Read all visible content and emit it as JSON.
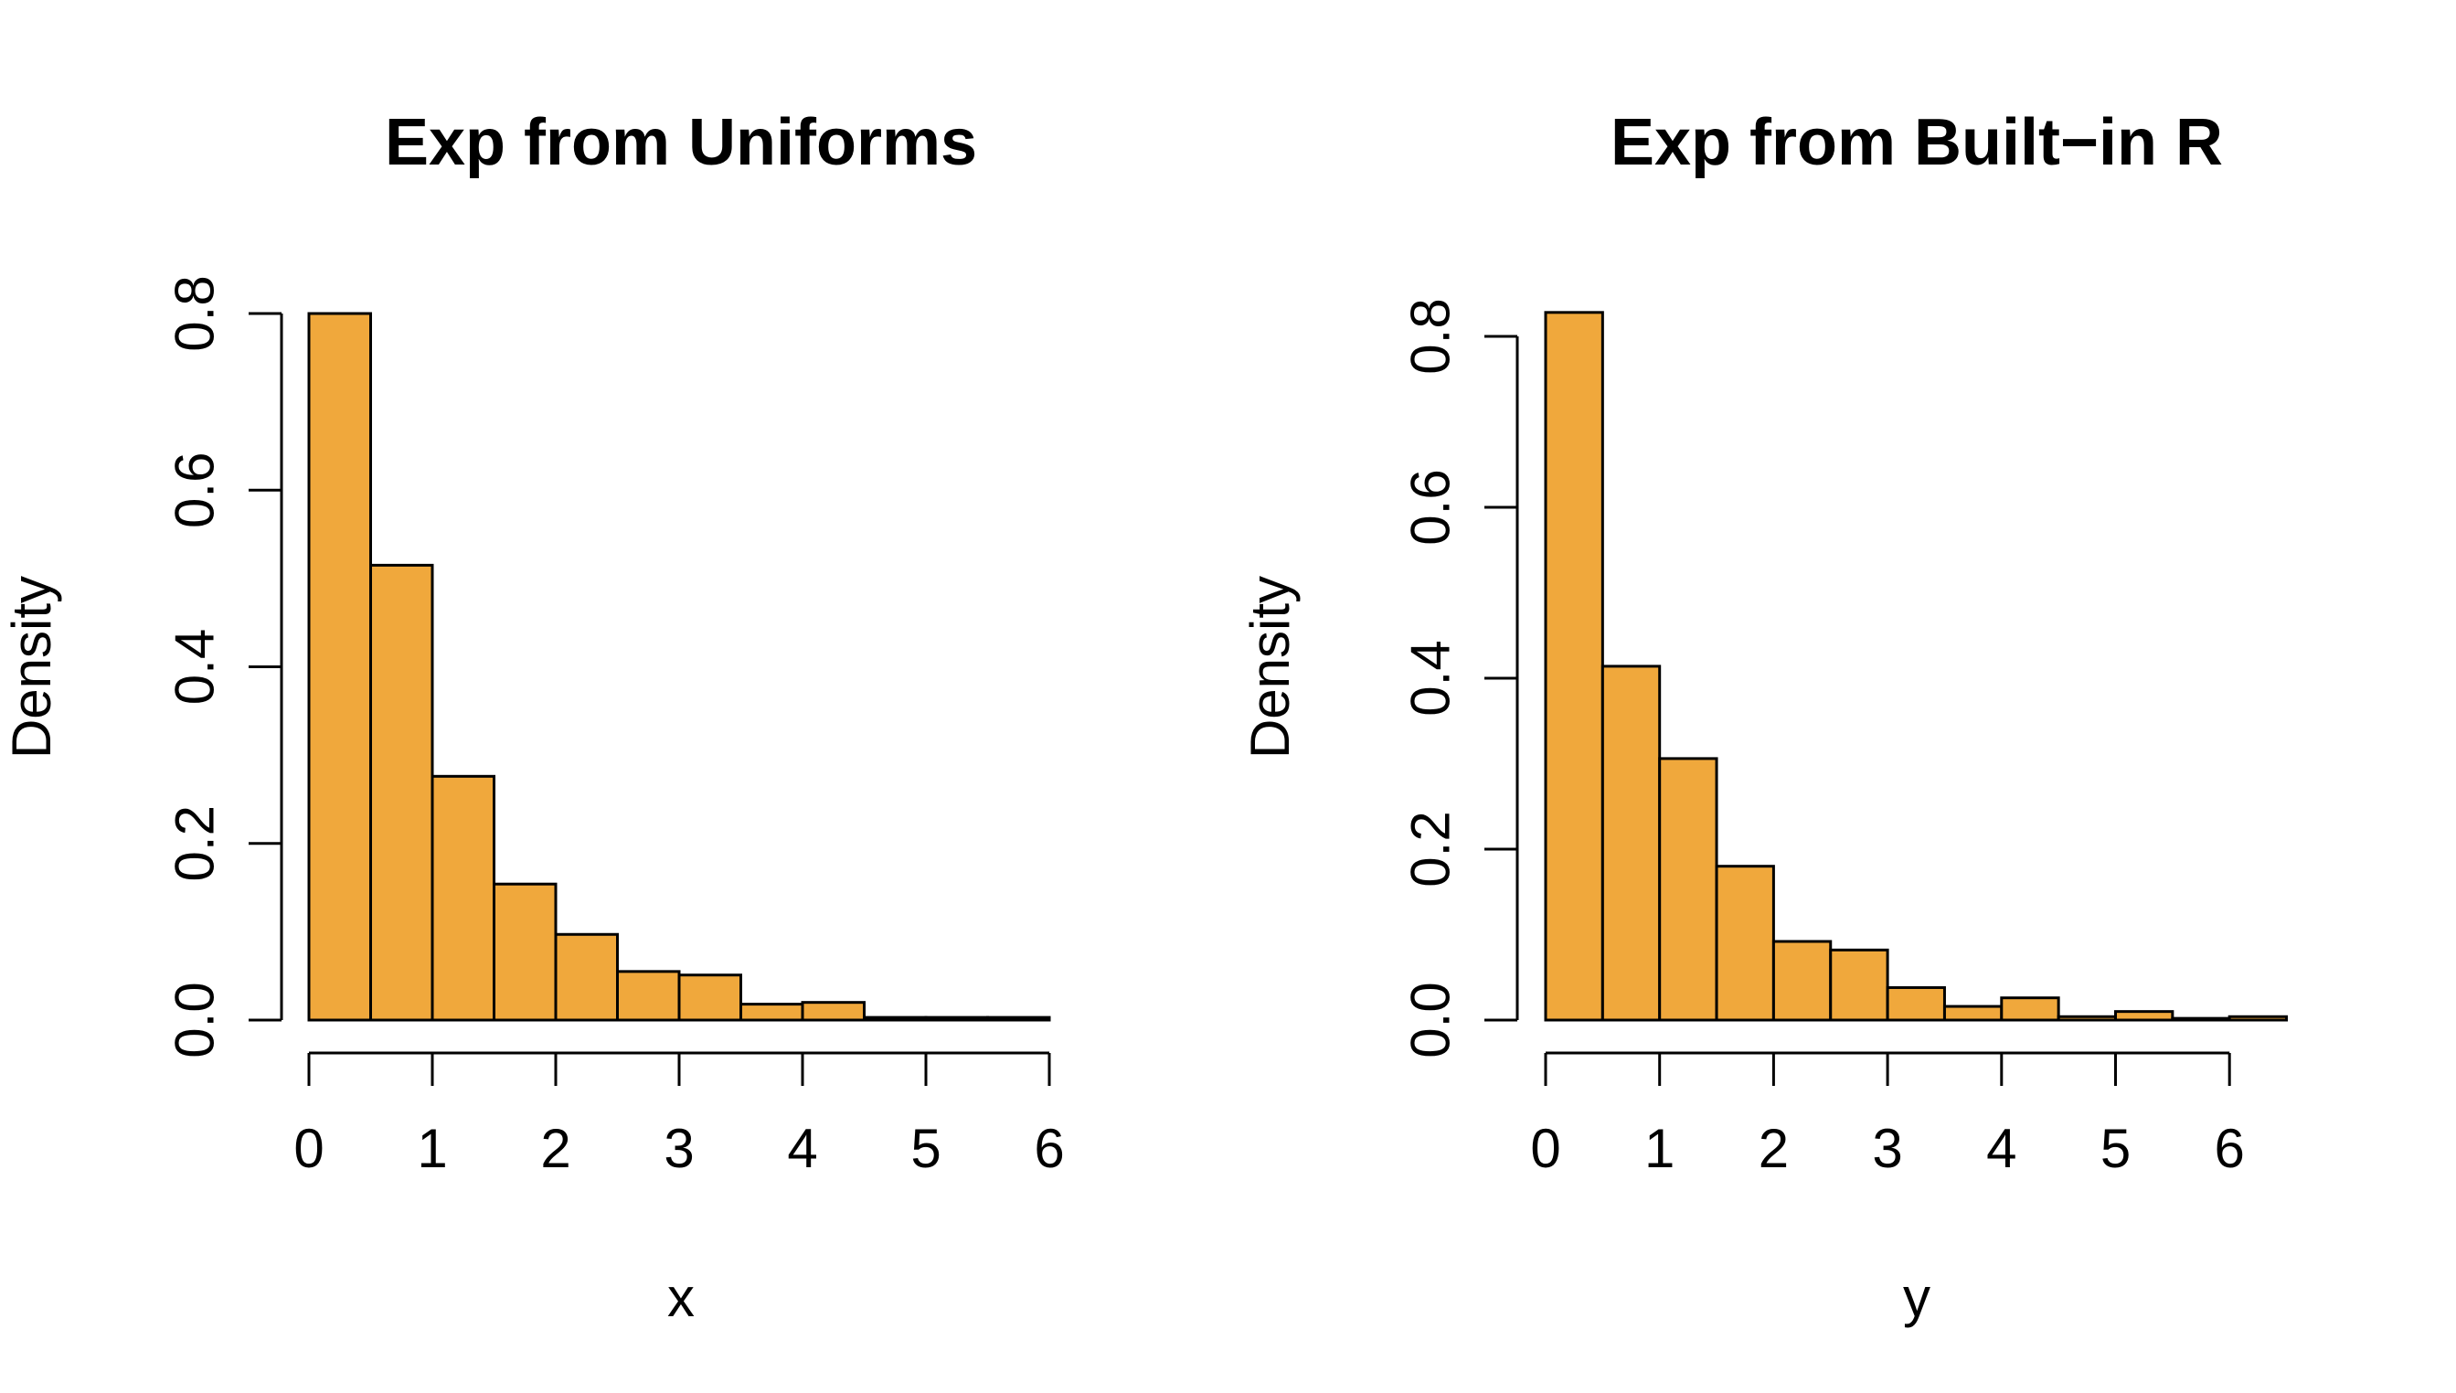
{
  "chart_data": [
    {
      "type": "bar",
      "title": "Exp from Uniforms",
      "xlabel": "x",
      "ylabel": "Density",
      "bar_color": "#F0A83C",
      "xlim": [
        0,
        6
      ],
      "ylim": [
        0,
        0.8
      ],
      "xticks": [
        0,
        1,
        2,
        3,
        4,
        5,
        6
      ],
      "yticks": [
        0.0,
        0.2,
        0.4,
        0.6,
        0.8
      ],
      "xtick_labels": [
        "0",
        "1",
        "2",
        "3",
        "4",
        "5",
        "6"
      ],
      "ytick_labels": [
        "0.0",
        "0.2",
        "0.4",
        "0.6",
        "0.8"
      ],
      "bin_edges": [
        0,
        0.5,
        1,
        1.5,
        2,
        2.5,
        3,
        3.5,
        4,
        4.5,
        5,
        5.5,
        6
      ],
      "values": [
        0.8,
        0.515,
        0.276,
        0.154,
        0.097,
        0.055,
        0.051,
        0.018,
        0.02,
        0.003,
        0.003,
        0.003
      ]
    },
    {
      "type": "bar",
      "title": "Exp from Built−in R",
      "xlabel": "y",
      "ylabel": "Density",
      "bar_color": "#F0A83C",
      "xlim": [
        0,
        6
      ],
      "ylim": [
        0,
        0.8
      ],
      "xticks": [
        0,
        1,
        2,
        3,
        4,
        5,
        6
      ],
      "yticks": [
        0.0,
        0.2,
        0.4,
        0.6,
        0.8
      ],
      "xtick_labels": [
        "0",
        "1",
        "2",
        "3",
        "4",
        "5",
        "6"
      ],
      "ytick_labels": [
        "0.0",
        "0.2",
        "0.4",
        "0.6",
        "0.8"
      ],
      "bin_edges": [
        0,
        0.5,
        1,
        1.5,
        2,
        2.5,
        3,
        3.5,
        4,
        4.5,
        5,
        5.5,
        6,
        6.5
      ],
      "values": [
        0.828,
        0.414,
        0.306,
        0.18,
        0.092,
        0.082,
        0.038,
        0.016,
        0.026,
        0.004,
        0.01,
        0.002,
        0.004
      ]
    }
  ]
}
